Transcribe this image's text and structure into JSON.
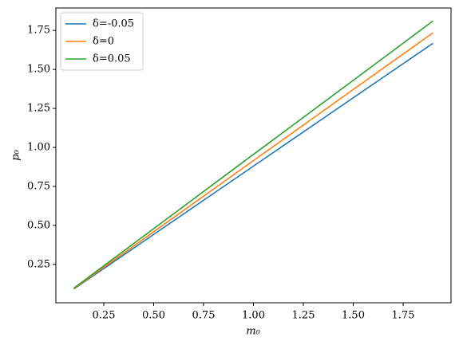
{
  "chart_data": {
    "type": "line",
    "x_label": "m₀",
    "y_label": "p₀",
    "x": [
      0.1,
      0.5,
      1.0,
      1.5,
      1.9
    ],
    "series": [
      {
        "name": "δ=-0.05",
        "color": "#1f77b4",
        "values": [
          0.092,
          0.442,
          0.88,
          1.318,
          1.668
        ]
      },
      {
        "name": "δ=0",
        "color": "#ff7f0e",
        "values": [
          0.095,
          0.459,
          0.915,
          1.371,
          1.735
        ]
      },
      {
        "name": "δ=0.05",
        "color": "#2ca02c",
        "values": [
          0.098,
          0.479,
          0.955,
          1.43,
          1.811
        ]
      }
    ],
    "xlim": [
      0.01,
      1.99
    ],
    "ylim": [
      0.004,
      1.894
    ],
    "xticks": [
      0.25,
      {
        "value": 0.5,
        "label": "0.50"
      },
      0.75,
      {
        "value": 1.0,
        "label": "1.00"
      },
      1.25,
      {
        "value": 1.5,
        "label": "1.50"
      },
      1.75
    ],
    "yticks": [
      0.25,
      {
        "value": 0.5,
        "label": "0.50"
      },
      0.75,
      {
        "value": 1.0,
        "label": "1.00"
      },
      1.25,
      {
        "value": 1.5,
        "label": "1.50"
      },
      1.75
    ],
    "legend": "upper-left",
    "grid": false
  }
}
